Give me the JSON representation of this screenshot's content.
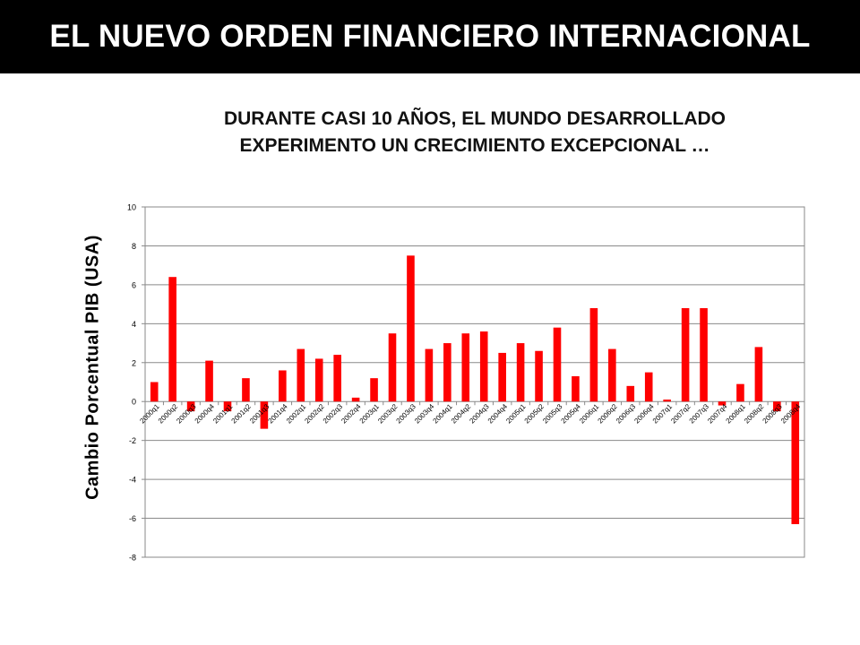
{
  "slide": {
    "title": "EL NUEVO ORDEN FINANCIERO INTERNACIONAL",
    "subtitle_line1": "DURANTE CASI 10 AÑOS, EL MUNDO DESARROLLADO",
    "subtitle_line2": "EXPERIMENTO UN CRECIMIENTO EXCEPCIONAL …"
  },
  "chart_data": {
    "type": "bar",
    "title": "",
    "xlabel": "",
    "ylabel": "Cambio Porcentual PIB (USA)",
    "ylim": [
      -8,
      10
    ],
    "yticks": [
      10,
      8,
      6,
      4,
      2,
      0,
      -2,
      -4,
      -6,
      -8
    ],
    "grid": true,
    "bar_color": "#ff0000",
    "categories": [
      "2000q1",
      "2000q2",
      "2000q3",
      "2000q4",
      "2001q1",
      "2001q2",
      "2001q3",
      "2001q4",
      "2002q1",
      "2002q2",
      "2002q3",
      "2002q4",
      "2003q1",
      "2003q2",
      "2003q3",
      "2003q4",
      "2004q1",
      "2004q2",
      "2004q3",
      "2004q4",
      "2005q1",
      "2005q2",
      "2005q3",
      "2005q4",
      "2006q1",
      "2006q2",
      "2006q3",
      "2006q4",
      "2007q1",
      "2007q2",
      "2007q3",
      "2007q4",
      "2008q1",
      "2008q2",
      "2008q3",
      "2008q4"
    ],
    "values": [
      1.0,
      6.4,
      -0.5,
      2.1,
      -0.5,
      1.2,
      -1.4,
      1.6,
      2.7,
      2.2,
      2.4,
      0.2,
      1.2,
      3.5,
      7.5,
      2.7,
      3.0,
      3.5,
      3.6,
      2.5,
      3.0,
      2.6,
      3.8,
      1.3,
      4.8,
      2.7,
      0.8,
      1.5,
      0.1,
      4.8,
      4.8,
      -0.2,
      0.9,
      2.8,
      -0.5,
      -6.3
    ]
  }
}
